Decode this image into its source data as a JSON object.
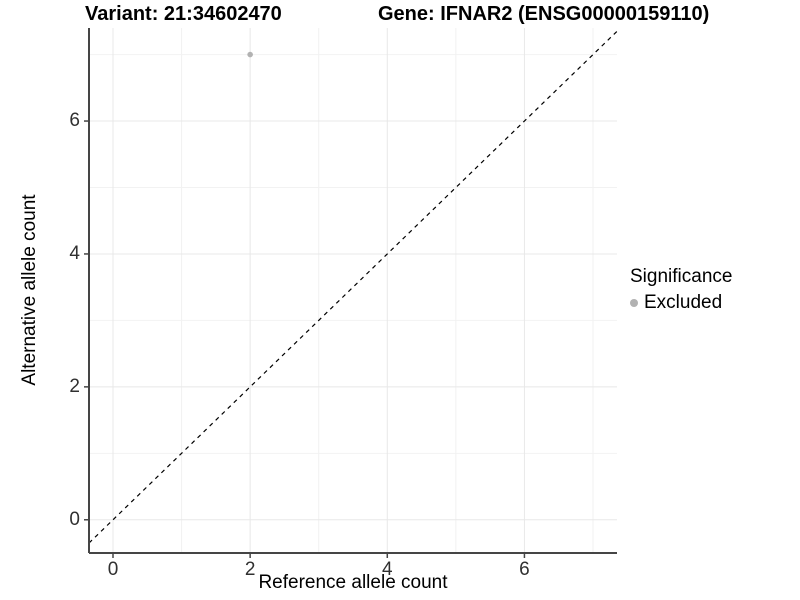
{
  "title": {
    "variant_label": "Variant: 21:34602470",
    "gene_label": "Gene: IFNAR2 (ENSG00000159110)"
  },
  "chart_data": {
    "type": "scatter",
    "title": "Variant: 21:34602470  Gene: IFNAR2 (ENSG00000159110)",
    "xlabel": "Reference allele count",
    "ylabel": "Alternative allele count",
    "xlim": [
      -0.35,
      7.35
    ],
    "ylim": [
      -0.5,
      7.4
    ],
    "x_major_ticks": [
      0,
      2,
      4,
      6
    ],
    "y_major_ticks": [
      0,
      2,
      4,
      6
    ],
    "x_minor_gridlines": [
      1,
      3,
      5,
      7
    ],
    "y_minor_gridlines": [
      1,
      3,
      5,
      7
    ],
    "grid": true,
    "legend_position": "right",
    "reference_line": {
      "slope": 1,
      "intercept": 0,
      "linetype": "dashed",
      "color": "#000000"
    },
    "series": [
      {
        "name": "Excluded",
        "color": "#b2b2b2",
        "points": [
          {
            "x": 2,
            "y": 7
          }
        ]
      }
    ],
    "legend": {
      "title": "Significance",
      "items": [
        {
          "label": "Excluded",
          "color": "#b2b2b2"
        }
      ]
    },
    "colors": {
      "grid_major": "#e8e8e8",
      "grid_minor": "#f2f2f2",
      "axis_line": "#454545",
      "tick_mark": "#454545",
      "tick_label": "#303030",
      "background": "#ffffff",
      "point": "#b2b2b2"
    }
  }
}
